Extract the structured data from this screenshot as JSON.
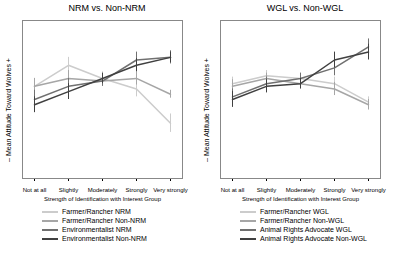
{
  "chart_data": [
    {
      "type": "line",
      "title": "NRM vs. Non-NRM",
      "categories": [
        "Not at all",
        "Slightly",
        "Moderately",
        "Strongly",
        "Very strongly"
      ],
      "xlabel": "Strength of Identification with Interest Group",
      "ylabel": "– Mean Attitude Toward Wolves +",
      "ylim": [
        1,
        7
      ],
      "yticks": [],
      "tick_labels": "x",
      "series": [
        {
          "name": "Farmer/Rancher NRM",
          "color": "#cccccc",
          "values": [
            4.5,
            5.3,
            4.8,
            4.4,
            3.1
          ],
          "errors": [
            0.3,
            0.3,
            0.25,
            0.3,
            0.35
          ]
        },
        {
          "name": "Farmer/Rancher Non-NRM",
          "color": "#a6a6a6",
          "values": [
            4.5,
            4.8,
            4.7,
            4.8,
            4.2
          ],
          "errors": [
            0.3,
            0.3,
            0.2,
            0.25,
            0.15
          ]
        },
        {
          "name": "Environmentalist NRM",
          "color": "#707070",
          "values": [
            4.0,
            4.5,
            4.7,
            5.5,
            5.6
          ],
          "errors": [
            0.35,
            0.3,
            0.2,
            0.3,
            0.25
          ]
        },
        {
          "name": "Environmentalist Non-NRM",
          "color": "#404040",
          "values": [
            3.8,
            4.3,
            4.8,
            5.3,
            5.6
          ],
          "errors": [
            0.3,
            0.3,
            0.2,
            0.25,
            0.2
          ]
        }
      ]
    },
    {
      "type": "line",
      "title": "WGL vs. Non-WGL",
      "categories": [
        "Not at all",
        "Slightly",
        "Moderately",
        "Strongly",
        "Very strongly"
      ],
      "xlabel": "Strength of Identification with Interest Group",
      "ylabel": "– Mean Attitude Toward Wolves +",
      "ylim": [
        1,
        7
      ],
      "yticks": [],
      "tick_labels": "x",
      "series": [
        {
          "name": "Farmer/Rancher WGL",
          "color": "#cccccc",
          "values": [
            4.6,
            4.9,
            4.8,
            4.6,
            3.9
          ],
          "errors": [
            0.25,
            0.2,
            0.2,
            0.25,
            0.2
          ]
        },
        {
          "name": "Farmer/Rancher Non-WGL",
          "color": "#a6a6a6",
          "values": [
            4.5,
            4.8,
            4.6,
            4.4,
            3.8
          ],
          "errors": [
            0.25,
            0.2,
            0.2,
            0.25,
            0.2
          ]
        },
        {
          "name": "Animal Rights Advocate WGL",
          "color": "#707070",
          "values": [
            4.1,
            4.6,
            4.8,
            5.2,
            6.0
          ],
          "errors": [
            0.3,
            0.25,
            0.2,
            0.3,
            0.3
          ]
        },
        {
          "name": "Animal Rights Advocate Non-WGL",
          "color": "#404040",
          "values": [
            4.0,
            4.5,
            4.6,
            5.5,
            5.8
          ],
          "errors": [
            0.3,
            0.25,
            0.2,
            0.3,
            0.3
          ]
        }
      ]
    }
  ]
}
